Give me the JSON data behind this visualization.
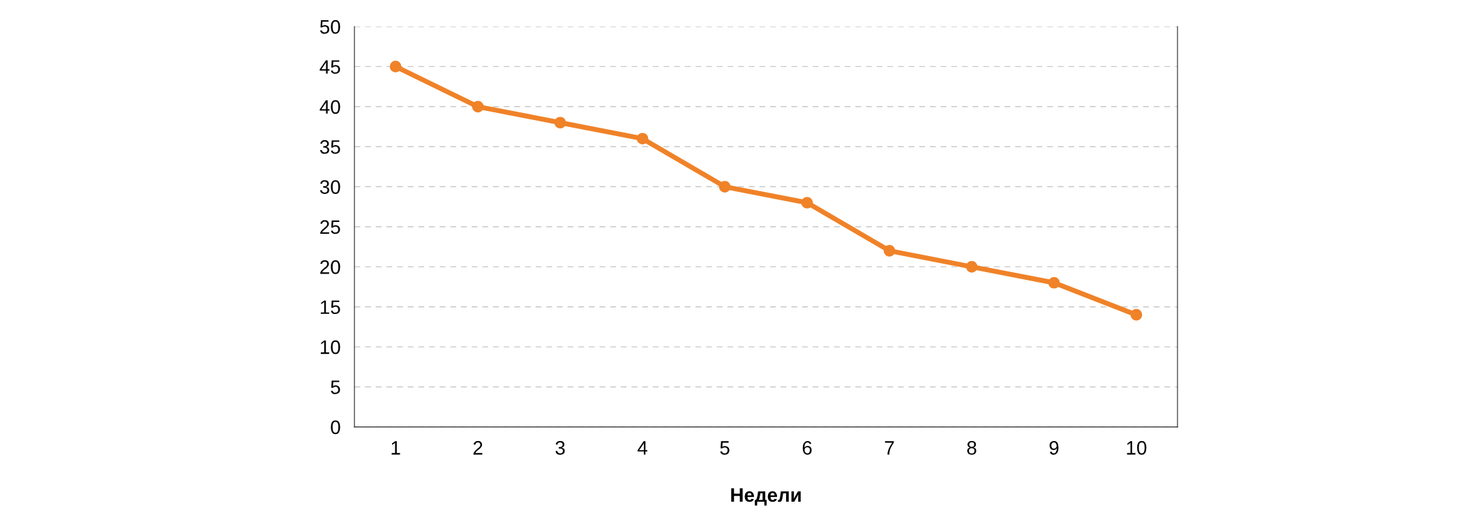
{
  "chart_data": {
    "type": "line",
    "xlabel": "Недели",
    "categories": [
      "1",
      "2",
      "3",
      "4",
      "5",
      "6",
      "7",
      "8",
      "9",
      "10"
    ],
    "series": [
      {
        "color": "#f08228",
        "values": [
          45,
          40,
          38,
          36,
          30,
          28,
          22,
          20,
          18,
          14
        ]
      }
    ],
    "ylim": [
      0,
      50
    ],
    "yticks": [
      0,
      5,
      10,
      15,
      20,
      25,
      30,
      35,
      40,
      45,
      50
    ],
    "grid": "y",
    "marker": "circle",
    "line_style": "solid",
    "legend": false
  }
}
